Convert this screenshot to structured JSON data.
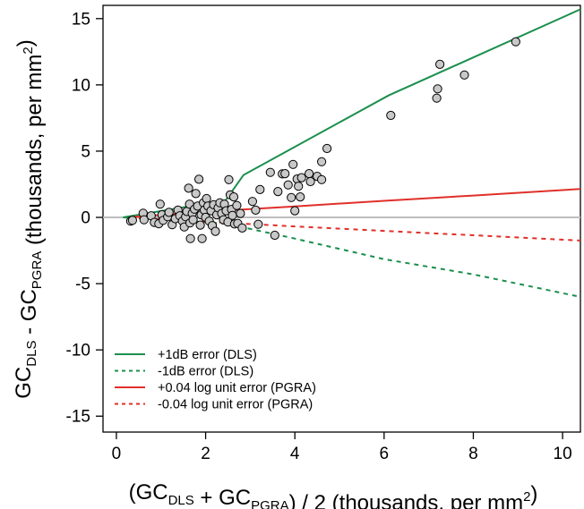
{
  "chart_data": {
    "type": "scatter",
    "xlabel": {
      "parts": [
        {
          "t": "(GC",
          "sub": false
        },
        {
          "t": "DLS",
          "sub": true
        },
        {
          "t": " + GC",
          "sub": false
        },
        {
          "t": "PGRA",
          "sub": true
        },
        {
          "t": ") / 2  (thousands, per mm",
          "sub": false
        },
        {
          "t": "2",
          "sup": true
        },
        {
          "t": ")",
          "sub": false
        }
      ]
    },
    "ylabel": {
      "parts": [
        {
          "t": "GC",
          "sub": false
        },
        {
          "t": "DLS",
          "sub": true
        },
        {
          "t": " - GC",
          "sub": false
        },
        {
          "t": "PGRA",
          "sub": true
        },
        {
          "t": "  (thousands, per mm",
          "sub": false
        },
        {
          "t": "2",
          "sup": true
        },
        {
          "t": ")",
          "sub": false
        }
      ]
    },
    "xlim": [
      -0.3,
      10.4
    ],
    "ylim": [
      -16.2,
      16.0
    ],
    "xticks": [
      0,
      2,
      4,
      6,
      8,
      10
    ],
    "yticks": [
      -15,
      -10,
      -5,
      0,
      5,
      10,
      15
    ],
    "zero_line": {
      "y": 0,
      "color": "#bdbdbd"
    },
    "points": [
      [
        0.32,
        -0.28
      ],
      [
        0.36,
        -0.22
      ],
      [
        0.6,
        0.32
      ],
      [
        0.62,
        -0.18
      ],
      [
        0.78,
        0.12
      ],
      [
        0.85,
        -0.38
      ],
      [
        0.95,
        -0.48
      ],
      [
        0.98,
        1.0
      ],
      [
        1.02,
        0.2
      ],
      [
        1.05,
        -0.22
      ],
      [
        1.15,
        0.05
      ],
      [
        1.18,
        0.38
      ],
      [
        1.25,
        -0.55
      ],
      [
        1.32,
        -0.1
      ],
      [
        1.38,
        0.55
      ],
      [
        1.42,
        0.12
      ],
      [
        1.48,
        -0.28
      ],
      [
        1.52,
        -0.72
      ],
      [
        1.55,
        0.05
      ],
      [
        1.58,
        0.45
      ],
      [
        1.62,
        2.2
      ],
      [
        1.64,
        1.0
      ],
      [
        1.65,
        -0.42
      ],
      [
        1.66,
        -1.6
      ],
      [
        1.7,
        0.3
      ],
      [
        1.72,
        -0.18
      ],
      [
        1.75,
        0.62
      ],
      [
        1.78,
        1.8
      ],
      [
        1.82,
        0.85
      ],
      [
        1.85,
        2.88
      ],
      [
        1.88,
        -0.58
      ],
      [
        1.9,
        0.2
      ],
      [
        1.92,
        -1.6
      ],
      [
        1.95,
        1.1
      ],
      [
        1.97,
        0.55
      ],
      [
        2.0,
        0.0
      ],
      [
        2.02,
        1.42
      ],
      [
        2.05,
        0.85
      ],
      [
        2.08,
        -0.28
      ],
      [
        2.12,
        0.5
      ],
      [
        2.15,
        -0.62
      ],
      [
        2.18,
        0.95
      ],
      [
        2.22,
        -1.05
      ],
      [
        2.25,
        0.2
      ],
      [
        2.28,
        0.72
      ],
      [
        2.32,
        1.1
      ],
      [
        2.36,
        0.3
      ],
      [
        2.4,
        -0.18
      ],
      [
        2.42,
        1.0
      ],
      [
        2.46,
        0.5
      ],
      [
        2.5,
        -0.35
      ],
      [
        2.52,
        2.85
      ],
      [
        2.55,
        1.7
      ],
      [
        2.58,
        0.6
      ],
      [
        2.6,
        0.15
      ],
      [
        2.63,
        1.55
      ],
      [
        2.65,
        -0.5
      ],
      [
        2.7,
        0.9
      ],
      [
        2.72,
        -0.45
      ],
      [
        2.78,
        0.3
      ],
      [
        2.82,
        -0.8
      ],
      [
        3.05,
        1.2
      ],
      [
        3.12,
        0.55
      ],
      [
        3.18,
        -0.52
      ],
      [
        3.22,
        2.1
      ],
      [
        3.45,
        3.4
      ],
      [
        3.55,
        -1.35
      ],
      [
        3.62,
        1.95
      ],
      [
        3.72,
        3.28
      ],
      [
        3.78,
        3.3
      ],
      [
        3.85,
        2.45
      ],
      [
        3.92,
        1.5
      ],
      [
        3.96,
        4.0
      ],
      [
        4.0,
        0.5
      ],
      [
        4.05,
        2.9
      ],
      [
        4.08,
        2.35
      ],
      [
        4.12,
        1.55
      ],
      [
        4.15,
        3.0
      ],
      [
        4.32,
        3.3
      ],
      [
        4.35,
        2.7
      ],
      [
        4.5,
        3.1
      ],
      [
        4.6,
        4.2
      ],
      [
        4.6,
        2.85
      ],
      [
        4.72,
        5.2
      ],
      [
        6.15,
        7.7
      ],
      [
        7.18,
        9.0
      ],
      [
        7.2,
        9.7
      ],
      [
        7.25,
        11.55
      ],
      [
        7.8,
        10.75
      ],
      [
        8.95,
        13.25
      ]
    ],
    "series": [
      {
        "name": "+1dB error (DLS)",
        "color": "#1b8f4e",
        "dash": "solid",
        "x": [
          0.15,
          2.45,
          2.85,
          6.1,
          10.4
        ],
        "y": [
          0.0,
          1.3,
          3.2,
          9.2,
          15.7
        ]
      },
      {
        "name": "-1dB error (DLS)",
        "color": "#1b8f4e",
        "dash": "dashed",
        "x": [
          0.15,
          1.4,
          2.5,
          4.0,
          6.0,
          8.0,
          10.4
        ],
        "y": [
          0.0,
          -0.2,
          -0.5,
          -1.6,
          -3.15,
          -4.3,
          -6.0
        ]
      },
      {
        "name": "+0.04 log unit error (PGRA)",
        "color": "#e0302a",
        "dash": "solid",
        "x": [
          0.3,
          2.0,
          4.0,
          6.0,
          8.0,
          10.4
        ],
        "y": [
          0.02,
          0.42,
          0.83,
          1.25,
          1.65,
          2.15
        ]
      },
      {
        "name": "-0.04 log unit error (PGRA)",
        "color": "#e0302a",
        "dash": "dashed",
        "x": [
          0.3,
          2.0,
          4.0,
          6.0,
          8.0,
          10.4
        ],
        "y": [
          -0.02,
          -0.32,
          -0.68,
          -1.02,
          -1.35,
          -1.75
        ]
      }
    ],
    "legend_position": "bottom-left",
    "point_fill": "#c8c8c8"
  }
}
